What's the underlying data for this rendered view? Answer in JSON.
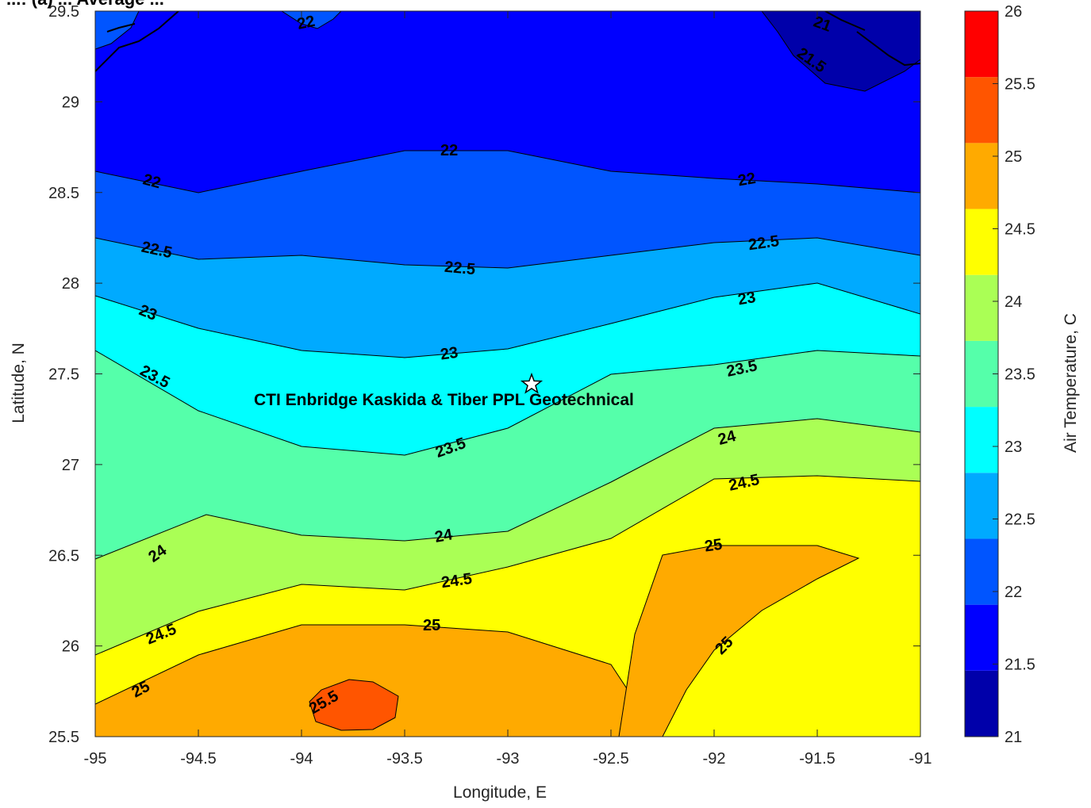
{
  "chart_data": {
    "type": "contour",
    "title": "...: (a) ... Average ...",
    "xlabel": "Longitude, E",
    "ylabel": "Latitude, N",
    "colorbar_label": "Air Temperature, C",
    "xlim": [
      -95,
      -91
    ],
    "ylim": [
      25.5,
      29.5
    ],
    "x_ticks": [
      "-95",
      "-94.5",
      "-94",
      "-93.5",
      "-93",
      "-92.5",
      "-92",
      "-91.5",
      "-91"
    ],
    "y_ticks": [
      "25.5",
      "26",
      "26.5",
      "27",
      "27.5",
      "28",
      "28.5",
      "29",
      "29.5"
    ],
    "clim": [
      21,
      26
    ],
    "colorbar_ticks": [
      "21",
      "21.5",
      "22",
      "22.5",
      "23",
      "23.5",
      "24",
      "24.5",
      "25",
      "25.5",
      "26"
    ],
    "colorbar_colors": [
      "#0000aa",
      "#0000ff",
      "#0055ff",
      "#00aaff",
      "#00ffff",
      "#55ffaa",
      "#aaff55",
      "#ffff00",
      "#ffaa00",
      "#ff5500",
      "#ff0000"
    ],
    "levels": [
      {
        "value": 22,
        "x": [
          -95,
          -94.5,
          -94,
          -93.5,
          -93,
          -92.5,
          -92,
          -91.5,
          -91
        ],
        "y": [
          28.62,
          28.5,
          28.62,
          28.73,
          28.73,
          28.62,
          28.58,
          28.55,
          28.5
        ]
      },
      {
        "value": 22.5,
        "x": [
          -95,
          -94.5,
          -94,
          -93.5,
          -93,
          -92.5,
          -92,
          -91.5,
          -91
        ],
        "y": [
          28.25,
          28.13,
          28.15,
          28.1,
          28.08,
          28.15,
          28.22,
          28.25,
          28.15
        ]
      },
      {
        "value": 23,
        "x": [
          -95,
          -94.5,
          -94,
          -93.5,
          -93,
          -92.5,
          -92,
          -91.5,
          -91
        ],
        "y": [
          27.93,
          27.75,
          27.62,
          27.58,
          27.63,
          27.77,
          27.92,
          28.0,
          27.83
        ]
      },
      {
        "value": 23.5,
        "x": [
          -95,
          -94.5,
          -94,
          -93.5,
          -93,
          -92.5,
          -92,
          -91.5,
          -91
        ],
        "y": [
          27.63,
          27.3,
          27.1,
          27.05,
          27.2,
          27.5,
          27.55,
          27.63,
          27.6
        ]
      },
      {
        "value": 24,
        "x": [
          -95,
          -94.5,
          -94,
          -93.5,
          -93,
          -92.5,
          -92,
          -91.5,
          -91
        ],
        "y": [
          26.48,
          26.72,
          26.6,
          26.58,
          26.63,
          26.9,
          27.2,
          27.25,
          27.18
        ]
      },
      {
        "value": 24.5,
        "x": [
          -95,
          -94.5,
          -94,
          -93.5,
          -93,
          -92.5,
          -92,
          -91.5,
          -91
        ],
        "y": [
          25.95,
          26.2,
          26.35,
          26.32,
          26.45,
          26.6,
          26.93,
          26.95,
          26.92
        ]
      },
      {
        "value": 25,
        "x": [
          -95,
          -94.5,
          -94,
          -93.5,
          -93,
          -92.5,
          -92,
          -91.5,
          -91
        ],
        "y": [
          25.68,
          25.95,
          26.12,
          26.12,
          26.08,
          25.9,
          25.5,
          25.5,
          25.5
        ]
      },
      {
        "value": 25,
        "x": [
          -92.25,
          -92,
          -91.5,
          -91.3,
          -91.5,
          -92,
          -92.25
        ],
        "y": [
          26.5,
          26.55,
          26.55,
          26.48,
          26.35,
          25.95,
          26.5
        ]
      },
      {
        "value": 25.5,
        "x": [
          -93.95,
          -93.75,
          -93.5,
          -93.6,
          -93.8,
          -93.95
        ],
        "y": [
          25.72,
          25.82,
          25.72,
          25.52,
          25.52,
          25.72
        ]
      }
    ],
    "labels": [
      "22",
      "22",
      "22",
      "22",
      "22.5",
      "22.5",
      "22.5",
      "23",
      "23",
      "23",
      "23.5",
      "23.5",
      "23.5",
      "24",
      "24",
      "24",
      "24.5",
      "24.5",
      "24.5",
      "25",
      "25",
      "25",
      "25",
      "25.5",
      "21",
      "21.5"
    ],
    "marker": {
      "x": -92.87,
      "y": 27.43,
      "symbol": "star"
    },
    "annotation": "CTI Enbridge  Kaskida & Tiber PPL Geotechnical"
  }
}
